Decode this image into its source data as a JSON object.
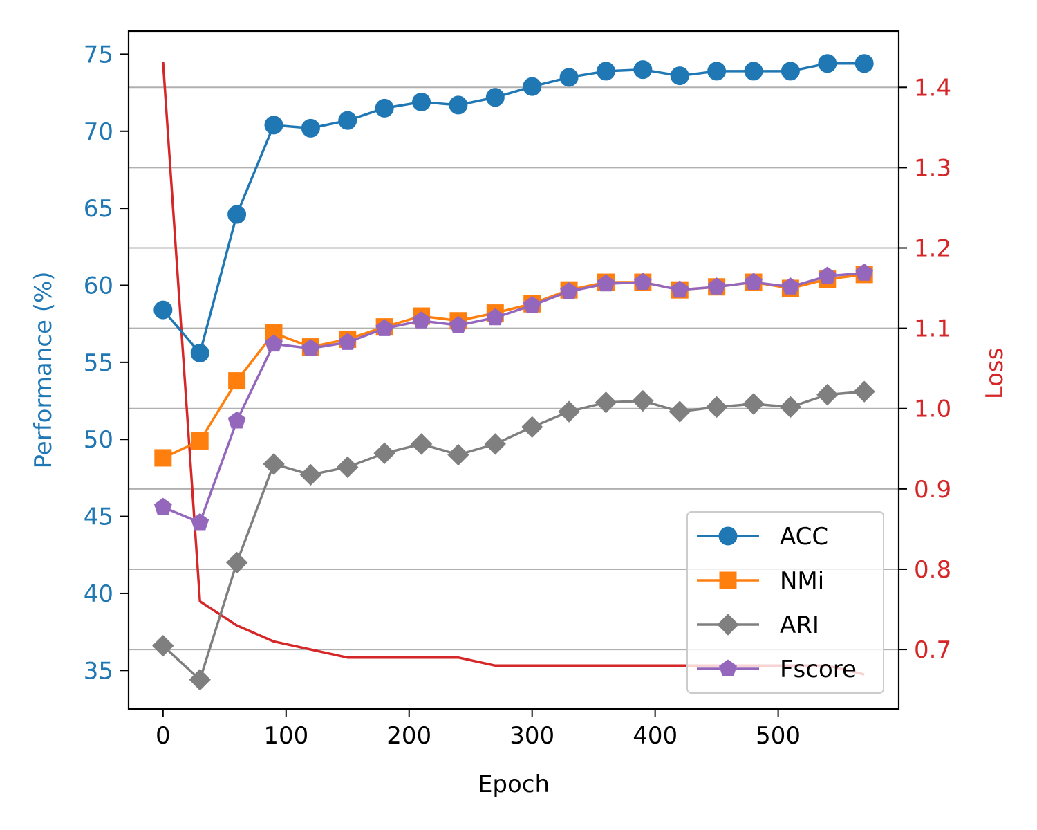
{
  "chart_data": {
    "type": "line",
    "xlabel": "Epoch",
    "ylabel_left": "Performance (%)",
    "ylabel_right": "Loss",
    "xlim": [
      -28,
      598
    ],
    "ylim_left": [
      32.5,
      76.5
    ],
    "ylim_right": [
      0.626,
      1.47
    ],
    "x_ticks": [
      0,
      100,
      200,
      300,
      400,
      500
    ],
    "y_left_ticks": [
      35,
      40,
      45,
      50,
      55,
      60,
      65,
      70,
      75
    ],
    "y_right_ticks": [
      "0.7",
      "0.8",
      "0.9",
      "1.0",
      "1.1",
      "1.2",
      "1.3",
      "1.4"
    ],
    "grid": "horizontal (right axis)",
    "legend_position": "lower-right",
    "x": [
      0,
      30,
      60,
      90,
      120,
      150,
      180,
      210,
      240,
      270,
      300,
      330,
      360,
      390,
      420,
      450,
      480,
      510,
      540,
      570
    ],
    "series": [
      {
        "name": "ACC",
        "axis": "left",
        "color": "#1f77b4",
        "marker": "circle",
        "values": [
          58.4,
          55.6,
          64.6,
          70.4,
          70.2,
          70.7,
          71.5,
          71.9,
          71.7,
          72.2,
          72.9,
          73.5,
          73.9,
          74.0,
          73.6,
          73.9,
          73.9,
          73.9,
          74.4,
          74.4
        ]
      },
      {
        "name": "NMI",
        "axis": "left",
        "color": "#ff7f0e",
        "marker": "square",
        "values": [
          48.8,
          49.9,
          53.8,
          56.9,
          56.0,
          56.5,
          57.3,
          58.0,
          57.7,
          58.2,
          58.8,
          59.7,
          60.2,
          60.2,
          59.7,
          59.9,
          60.2,
          59.8,
          60.4,
          60.7
        ]
      },
      {
        "name": "ARI",
        "axis": "left",
        "color": "#7f7f7f",
        "marker": "diamond",
        "values": [
          36.6,
          34.4,
          42.0,
          48.4,
          47.7,
          48.2,
          49.1,
          49.7,
          49.0,
          49.7,
          50.8,
          51.8,
          52.4,
          52.5,
          51.8,
          52.1,
          52.3,
          52.1,
          52.9,
          53.1
        ]
      },
      {
        "name": "Fscore",
        "axis": "left",
        "color": "#9467bd",
        "marker": "pentagon",
        "values": [
          45.6,
          44.6,
          51.2,
          56.2,
          55.9,
          56.3,
          57.2,
          57.7,
          57.4,
          57.9,
          58.7,
          59.6,
          60.1,
          60.2,
          59.7,
          59.9,
          60.2,
          59.9,
          60.6,
          60.8
        ]
      },
      {
        "name": "Loss",
        "axis": "right",
        "color": "#d62728",
        "marker": "none",
        "values": [
          1.432,
          0.76,
          0.73,
          0.71,
          0.7,
          0.69,
          0.69,
          0.69,
          0.69,
          0.68,
          0.68,
          0.68,
          0.68,
          0.68,
          0.68,
          0.68,
          0.68,
          0.68,
          0.68,
          0.669
        ]
      }
    ],
    "legend": [
      "ACC",
      "NMi",
      "ARI",
      "Fscore"
    ]
  }
}
